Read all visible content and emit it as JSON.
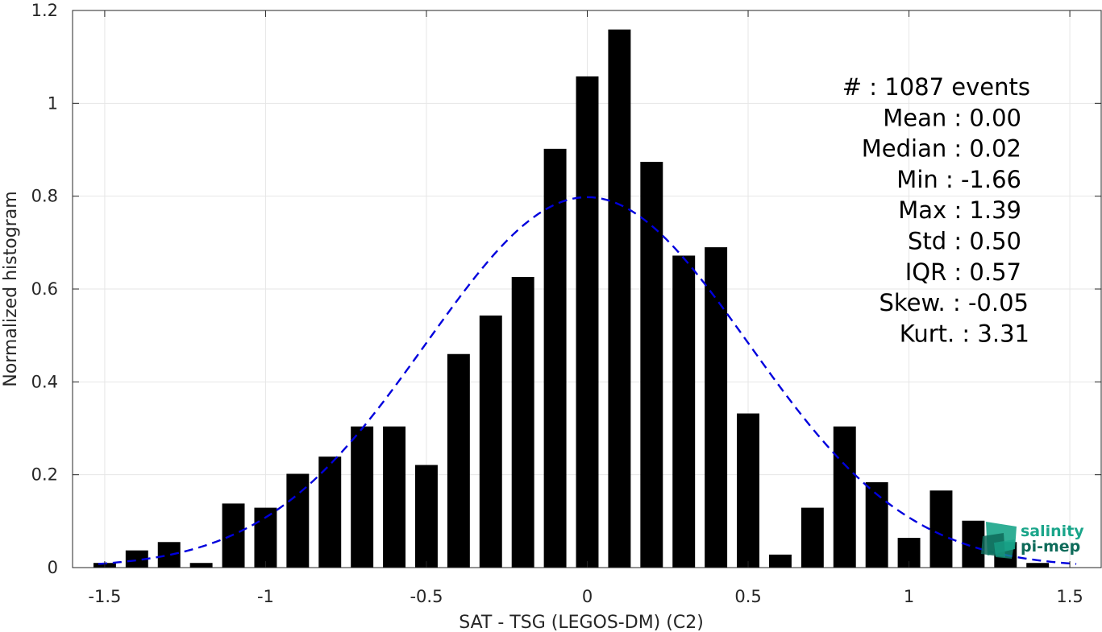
{
  "chart_data": {
    "type": "bar",
    "xlabel": "SAT - TSG (LEGOS-DM) (C2)",
    "ylabel": "Normalized histogram",
    "xlim": [
      -1.6,
      1.6
    ],
    "ylim": [
      0,
      1.2
    ],
    "x_ticks": [
      -1.5,
      -1,
      -0.5,
      0,
      0.5,
      1,
      1.5
    ],
    "x_tick_labels": [
      "-1.5",
      "-1",
      "-0.5",
      "0",
      "0.5",
      "1",
      "1.5"
    ],
    "y_ticks": [
      0,
      0.2,
      0.4,
      0.6,
      0.8,
      1,
      1.2
    ],
    "y_tick_labels": [
      "0",
      "0.2",
      "0.4",
      "0.6",
      "0.8",
      "1",
      "1.2"
    ],
    "grid": true,
    "bar_width": 0.07,
    "bar_color": "#000000",
    "bins": {
      "x": [
        -1.5,
        -1.4,
        -1.3,
        -1.2,
        -1.1,
        -1.0,
        -0.9,
        -0.8,
        -0.7,
        -0.6,
        -0.5,
        -0.4,
        -0.3,
        -0.2,
        -0.1,
        0.0,
        0.1,
        0.2,
        0.3,
        0.4,
        0.5,
        0.6,
        0.7,
        0.8,
        0.9,
        1.0,
        1.1,
        1.2,
        1.3,
        1.4
      ],
      "values": [
        0.01,
        0.037,
        0.055,
        0.01,
        0.138,
        0.129,
        0.202,
        0.239,
        0.304,
        0.304,
        0.221,
        0.46,
        0.543,
        0.626,
        0.902,
        1.058,
        1.159,
        0.874,
        0.672,
        0.69,
        0.332,
        0.028,
        0.129,
        0.304,
        0.184,
        0.064,
        0.166,
        0.101,
        0.055,
        0.01
      ]
    },
    "fit_curve": {
      "kind": "normal",
      "mean": 0.0,
      "std": 0.5,
      "x_range": [
        -1.52,
        1.52
      ],
      "color": "#0000dd",
      "style": "dashed"
    },
    "stats": [
      {
        "label": "#  : 1087 events"
      },
      {
        "label": "Mean : 0.00"
      },
      {
        "label": "Median : 0.02"
      },
      {
        "label": "Min : -1.66"
      },
      {
        "label": "Max : 1.39"
      },
      {
        "label": "Std : 0.50"
      },
      {
        "label": "IQR : 0.57"
      },
      {
        "label": "Skew. : -0.05"
      },
      {
        "label": "Kurt. : 3.31"
      }
    ]
  },
  "logo": {
    "line1": "salinity",
    "line2": "pi-mep",
    "color_primary": "#1aa58a",
    "color_secondary": "#0e6b5a"
  }
}
